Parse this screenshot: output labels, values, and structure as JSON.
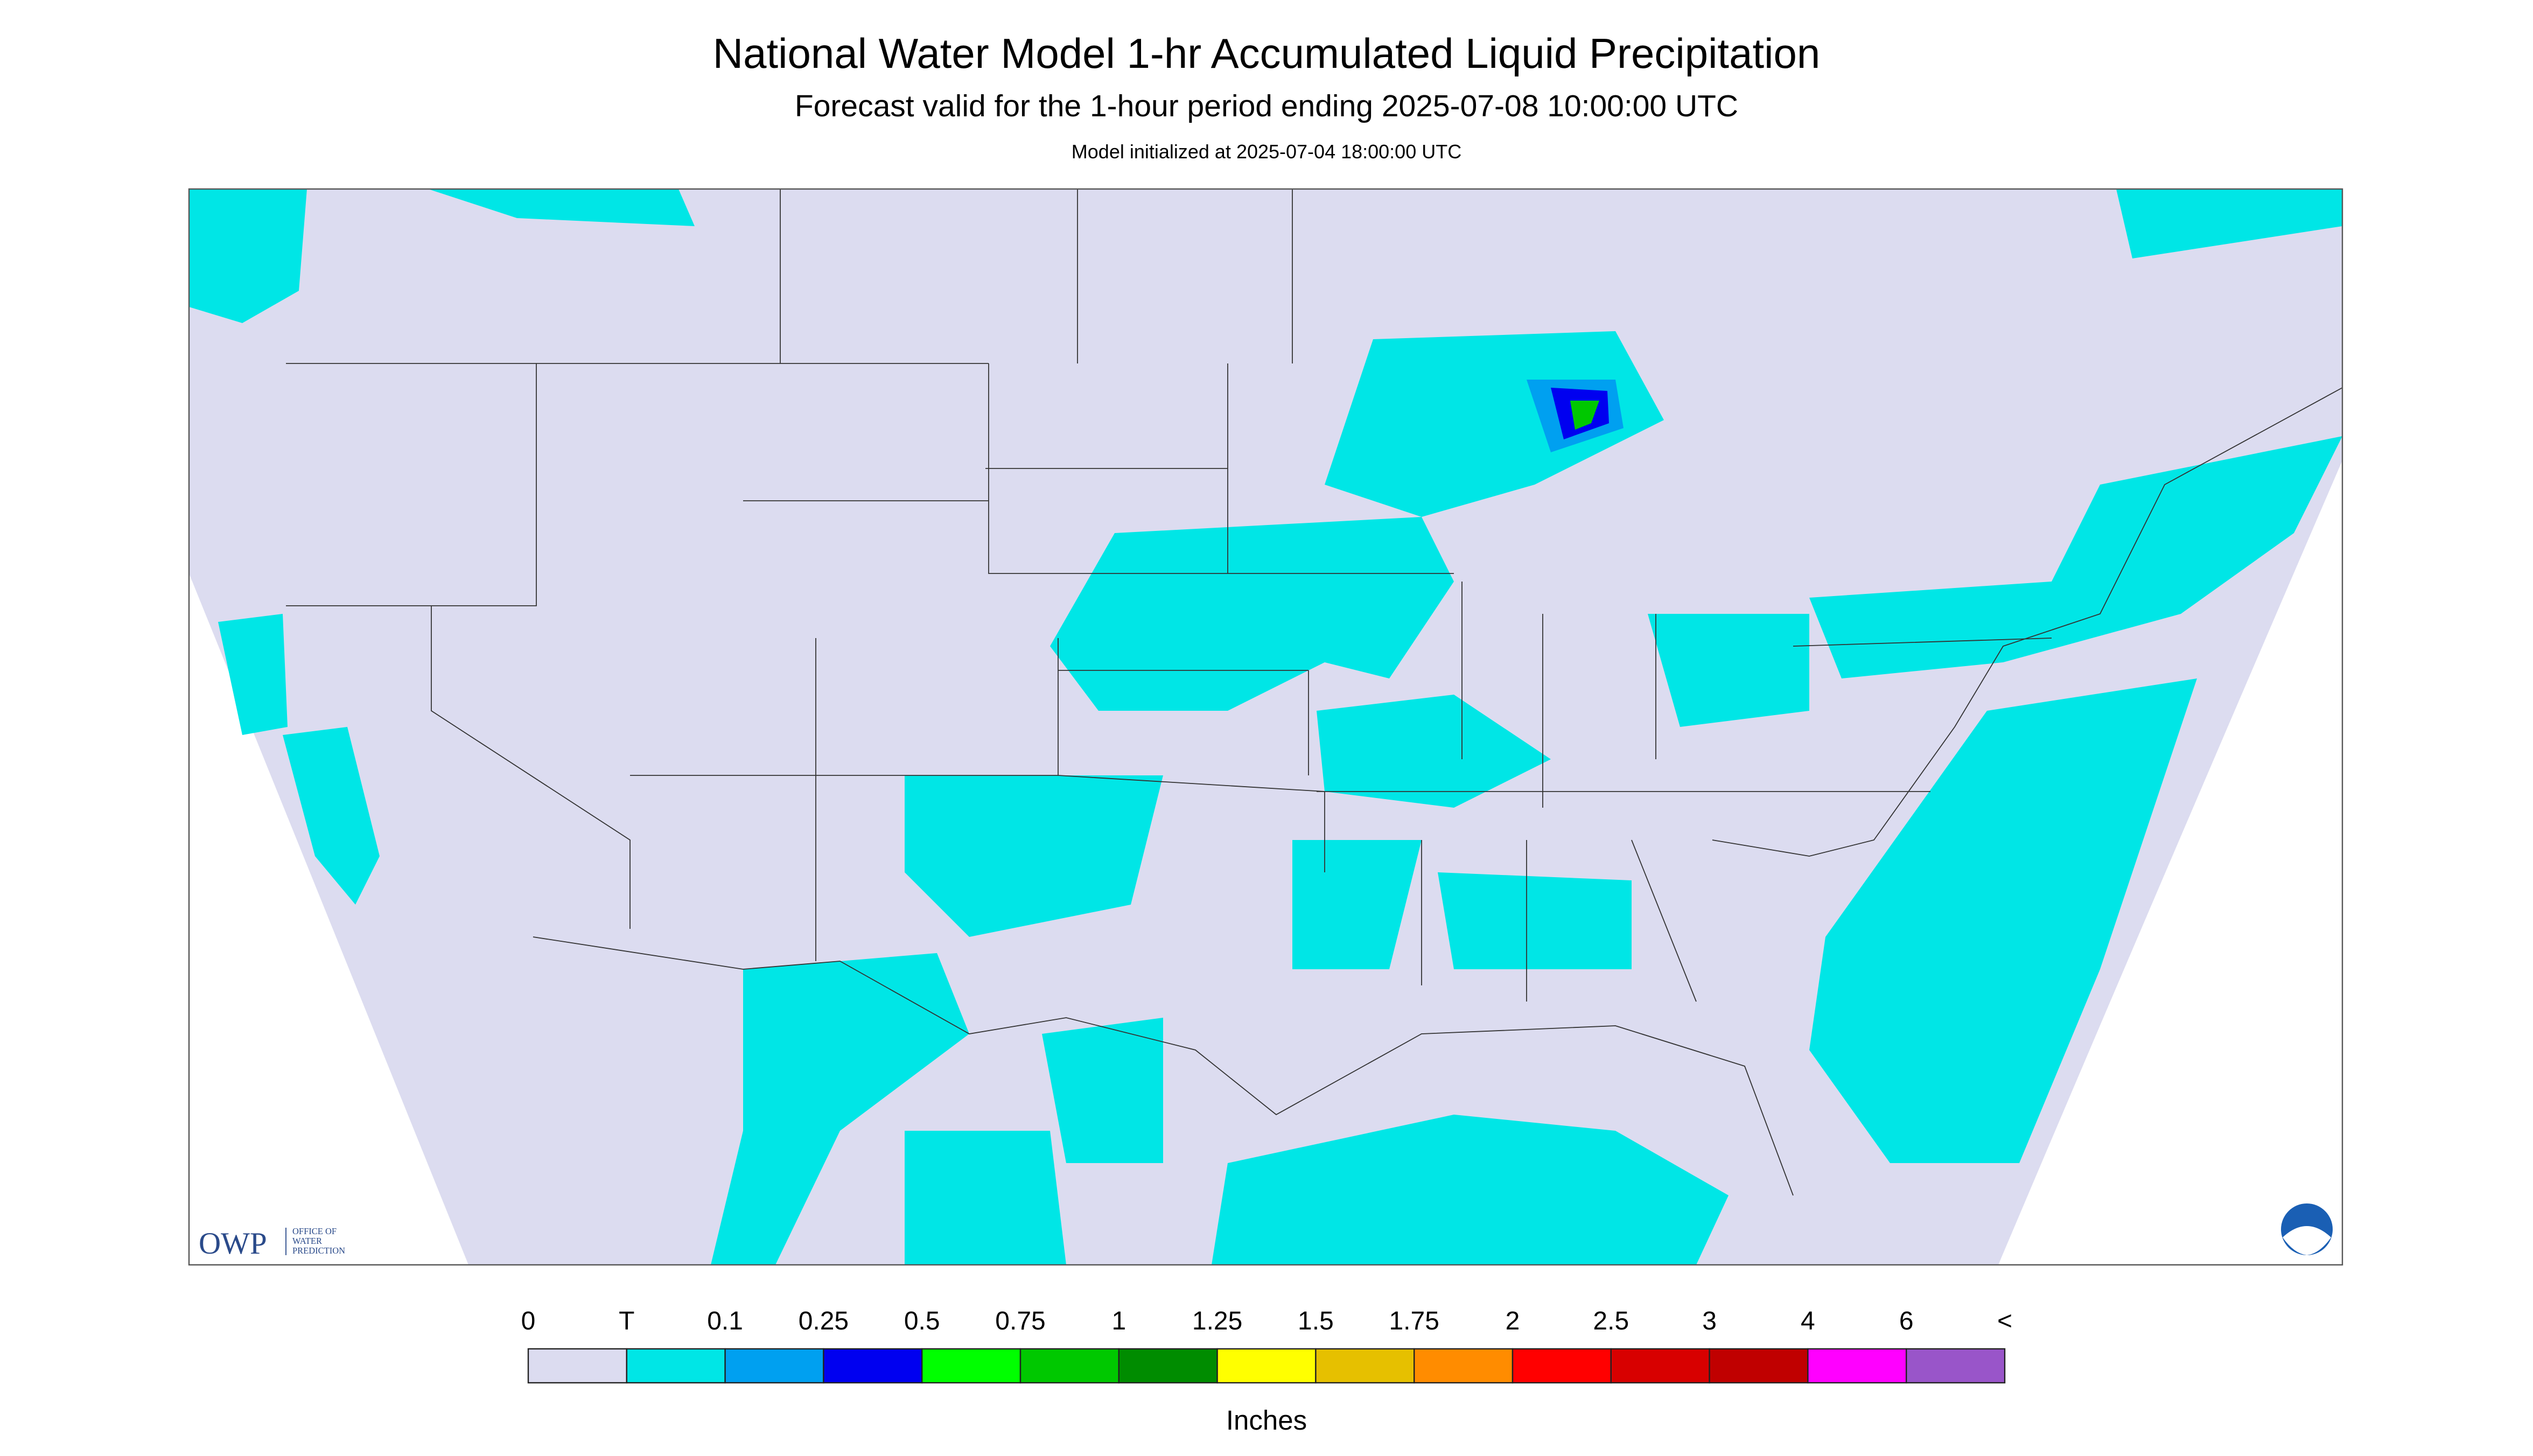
{
  "header": {
    "title": "National Water Model 1-hr Accumulated Liquid Precipitation",
    "subtitle": "Forecast valid for the 1-hour period ending 2025-07-08 10:00:00 UTC",
    "initialized": "Model initialized at 2025-07-04 18:00:00 UTC"
  },
  "legend": {
    "labels": [
      "0",
      "T",
      "0.1",
      "0.25",
      "0.5",
      "0.75",
      "1",
      "1.25",
      "1.5",
      "1.75",
      "2",
      "2.5",
      "3",
      "4",
      "6",
      "<"
    ],
    "colors": [
      "#dcdcf0",
      "#00e6e6",
      "#00a0f0",
      "#0000f0",
      "#00ff00",
      "#00c800",
      "#008c00",
      "#ffff00",
      "#e6c000",
      "#ff8c00",
      "#ff0000",
      "#d80000",
      "#c00000",
      "#ff00ff",
      "#9955c9"
    ],
    "unit": "Inches"
  },
  "logo": {
    "name": "OWP",
    "lines": [
      "OFFICE OF",
      "WATER",
      "PREDICTION"
    ]
  }
}
